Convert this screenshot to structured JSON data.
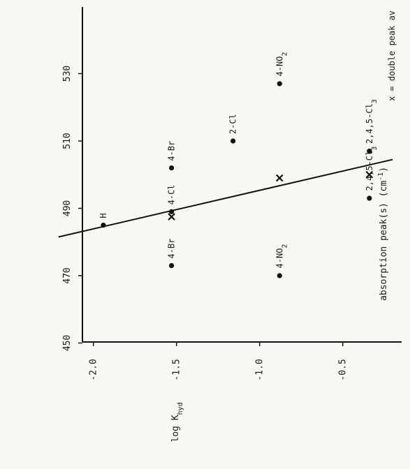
{
  "chart_data": {
    "type": "scatter",
    "orientation": "rotated-90-ccw",
    "title": "",
    "xlabel": "absorption peak(s)",
    "xunit_base": "(cm",
    "xunit_sup": "-1",
    "xunit_end": ")",
    "ylabel_base": "log K",
    "ylabel_sub": "hyd",
    "legend_note": "x = double peak av",
    "xlim": [
      450,
      540
    ],
    "ylim": [
      -0.2,
      -2.2
    ],
    "x_ticks": [
      "450",
      "470",
      "490",
      "510",
      "530"
    ],
    "y_ticks": [
      "-2.0",
      "-1.5",
      "-1.0",
      "-0.5"
    ],
    "y_tick_values": [
      -2.0,
      -1.5,
      -1.0,
      -0.5
    ],
    "x_tick_values": [
      450,
      470,
      490,
      510,
      530
    ],
    "points": [
      {
        "label": "H",
        "x": 485,
        "y": -1.94
      },
      {
        "label": "4-Cl",
        "x": 489,
        "y": -1.53
      },
      {
        "label": "4-Br",
        "x": 473,
        "y": -1.53
      },
      {
        "label": "4-Br",
        "x": 502,
        "y": -1.53
      },
      {
        "label": "2-Cl",
        "x": 510,
        "y": -1.16
      },
      {
        "label": "4-NO",
        "label_sub": "2",
        "x": 470,
        "y": -0.88
      },
      {
        "label": "4-NO",
        "label_sub": "2",
        "x": 527,
        "y": -0.88
      },
      {
        "label": "2,4,5-Cl",
        "label_sub": "3",
        "x": 493,
        "y": -0.34
      },
      {
        "label": "2,4,5-Cl",
        "label_sub": "3",
        "x": 507,
        "y": -0.34
      }
    ],
    "double_peak_averages": [
      {
        "x": 487.5,
        "y": -1.53
      },
      {
        "x": 499,
        "y": -0.88
      },
      {
        "x": 500,
        "y": -0.34
      }
    ],
    "fit_line": {
      "x": [
        481.5,
        504.5
      ],
      "y": [
        -2.21,
        -0.2
      ]
    }
  }
}
